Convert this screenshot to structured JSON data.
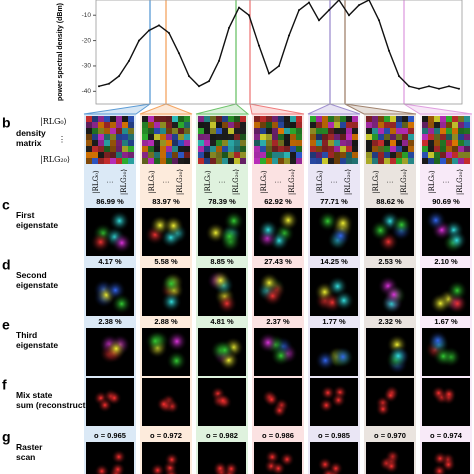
{
  "spectrum": {
    "ylabel": "power spectral density (dBm)",
    "ylim": [
      -4,
      -45
    ],
    "yticks": [
      -10,
      -20,
      -30,
      -40
    ],
    "values": [
      -38,
      -37,
      -34,
      -28,
      -20,
      -16,
      -14,
      -17,
      -25,
      -34,
      -38,
      -36,
      -28,
      -15,
      -7,
      -10,
      -22,
      -33,
      -30,
      -18,
      -8,
      -5,
      -12,
      -8,
      -4,
      -10,
      -6,
      -4,
      -12,
      -24,
      -34,
      -38,
      -39,
      -38,
      -39,
      -38,
      -39
    ]
  },
  "rows": [
    {
      "letter": "b",
      "text": "density matrix"
    },
    {
      "letter": "c",
      "text": "First eigenstate"
    },
    {
      "letter": "d",
      "text": "Second eigenstate"
    },
    {
      "letter": "e",
      "text": "Third eigenstate"
    },
    {
      "letter": "f",
      "text": "Mix state sum (reconstruction)"
    },
    {
      "letter": "g",
      "text": "Raster scan"
    }
  ],
  "kets": {
    "first": "|RLG₀⟩",
    "dots": "⋮",
    "last": "|RLG₂₀⟩",
    "hdots": "···"
  },
  "columns": [
    {
      "color": "#5b9bd5",
      "first": "86.99 %",
      "second": "4.17 %",
      "third": "2.38 %",
      "overlap": "o = 0.965"
    },
    {
      "color": "#f4a460",
      "first": "83.97 %",
      "second": "5.58 %",
      "third": "2.88 %",
      "overlap": "o = 0.972"
    },
    {
      "color": "#6cc36a",
      "first": "78.39 %",
      "second": "8.85 %",
      "third": "4.81 %",
      "overlap": "o = 0.982"
    },
    {
      "color": "#ef7b7b",
      "first": "62.92 %",
      "second": "27.43 %",
      "third": "2.37 %",
      "overlap": "o = 0.986"
    },
    {
      "color": "#9f8fd0",
      "first": "77.71 %",
      "second": "14.25 %",
      "third": "1.77 %",
      "overlap": "o = 0.985"
    },
    {
      "color": "#a0826d",
      "first": "88.62 %",
      "second": "2.53 %",
      "third": "2.32 %",
      "overlap": "o = 0.970"
    },
    {
      "color": "#df9ee0",
      "first": "90.69 %",
      "second": "2.10 %",
      "third": "1.67 %",
      "overlap": "o = 0.974"
    }
  ]
}
